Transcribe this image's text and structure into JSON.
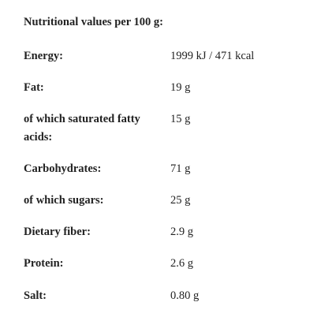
{
  "title": "Nutritional values per 100 g:",
  "table": {
    "rows": [
      [
        "Energy:",
        "1999 kJ / 471 kcal"
      ],
      [
        "Fat:",
        "19 g"
      ],
      [
        "of which saturated fatty acids:",
        "15 g"
      ],
      [
        "Carbohydrates:",
        "71 g"
      ],
      [
        "of which sugars:",
        "25 g"
      ],
      [
        "Dietary fiber:",
        "2.9 g"
      ],
      [
        "Protein:",
        "2.6 g"
      ],
      [
        "Salt:",
        "0.80 g"
      ]
    ]
  }
}
